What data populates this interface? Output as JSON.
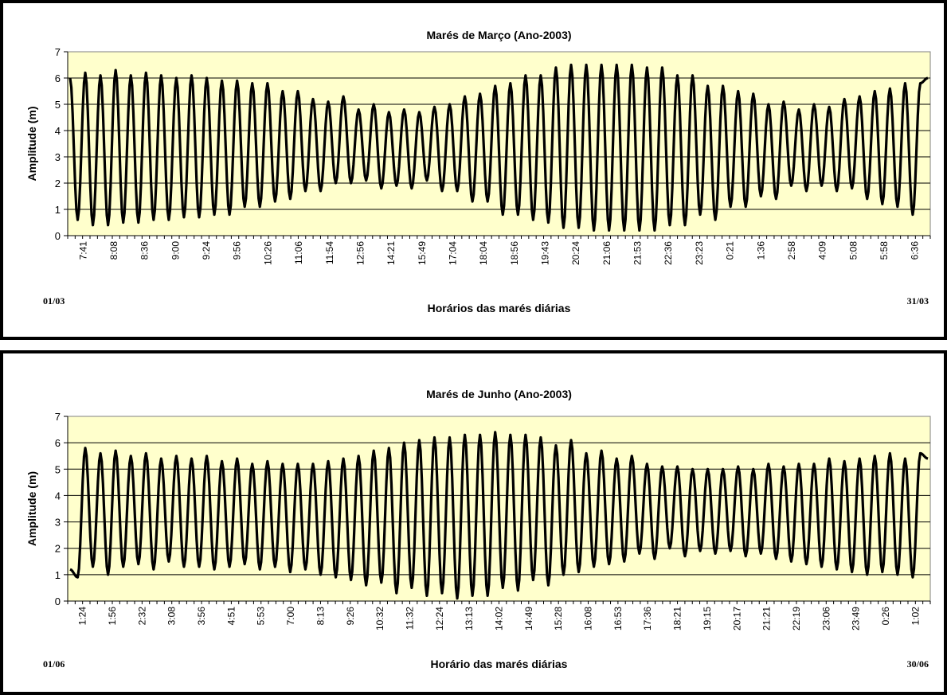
{
  "chart_data": [
    {
      "type": "line",
      "title": "Marés de Março (Ano-2003)",
      "xlabel": "Horários das marés diárias",
      "ylabel": "Amplitude (m)",
      "start_date_label": "01/03",
      "end_date_label": "31/03",
      "ylim": [
        0,
        7
      ],
      "yticks": [
        0,
        1,
        2,
        3,
        4,
        5,
        6,
        7
      ],
      "grid": true,
      "legend": "none",
      "plot_background": "#FFFFCC",
      "line_color": "#000000",
      "x_tick_labels": [
        "7:41",
        "8:08",
        "8:36",
        "9:00",
        "9:24",
        "9:56",
        "10:26",
        "11:06",
        "11:54",
        "12:56",
        "14:21",
        "15:49",
        "17:04",
        "18:04",
        "18:56",
        "19:43",
        "20:24",
        "21:06",
        "21:53",
        "22:36",
        "23:23",
        "0:21",
        "1:36",
        "2:58",
        "4:09",
        "5:08",
        "5:58",
        "6:36"
      ],
      "series": [
        {
          "high_waters": [
            6.2,
            6.1,
            6.3,
            6.1,
            6.2,
            6.1,
            6.0,
            6.1,
            6.0,
            5.9,
            5.9,
            5.8,
            5.8,
            5.5,
            5.5,
            5.2,
            5.1,
            5.3,
            4.8,
            5.0,
            4.7,
            4.8,
            4.7,
            4.9,
            5.0,
            5.3,
            5.4,
            5.7,
            5.8,
            6.1,
            6.1,
            6.4,
            6.5,
            6.5,
            6.5,
            6.5,
            6.5,
            6.4,
            6.4,
            6.1,
            6.1,
            5.7,
            5.7,
            5.5,
            5.4,
            5.0,
            5.1,
            4.8,
            5.0,
            4.9,
            5.2,
            5.3,
            5.5,
            5.6,
            5.8,
            5.8
          ],
          "low_waters": [
            0.6,
            0.4,
            0.4,
            0.5,
            0.5,
            0.6,
            0.6,
            0.7,
            0.7,
            0.8,
            0.8,
            1.1,
            1.1,
            1.3,
            1.4,
            1.7,
            1.7,
            2.0,
            2.0,
            2.1,
            1.8,
            1.9,
            1.8,
            2.1,
            1.7,
            1.7,
            1.3,
            1.3,
            0.8,
            0.8,
            0.6,
            0.5,
            0.3,
            0.3,
            0.2,
            0.2,
            0.2,
            0.2,
            0.2,
            0.4,
            0.4,
            0.8,
            0.6,
            1.1,
            1.1,
            1.5,
            1.4,
            1.9,
            1.7,
            1.9,
            1.7,
            1.8,
            1.4,
            1.2,
            1.1,
            0.8
          ],
          "start_value": 6.0,
          "end_value": 6.0
        }
      ]
    },
    {
      "type": "line",
      "title": "Marés de Junho (Ano-2003)",
      "xlabel": "Horário das marés diárias",
      "ylabel": "Amplitude (m)",
      "start_date_label": "01/06",
      "end_date_label": "30/06",
      "ylim": [
        0,
        7
      ],
      "yticks": [
        0,
        1,
        2,
        3,
        4,
        5,
        6,
        7
      ],
      "grid": true,
      "legend": "none",
      "plot_background": "#FFFFCC",
      "line_color": "#000000",
      "x_tick_labels": [
        "1:24",
        "1:56",
        "2:32",
        "3:08",
        "3:56",
        "4:51",
        "5:53",
        "7:00",
        "8:13",
        "9:26",
        "10:32",
        "11:32",
        "12:24",
        "13:13",
        "14:02",
        "14:49",
        "15:28",
        "16:08",
        "16:53",
        "17:36",
        "18:21",
        "19:15",
        "20:17",
        "21:21",
        "22:19",
        "23:06",
        "23:49",
        "0:26",
        "1:02"
      ],
      "series": [
        {
          "high_waters": [
            5.8,
            5.6,
            5.7,
            5.5,
            5.6,
            5.4,
            5.5,
            5.4,
            5.5,
            5.3,
            5.4,
            5.2,
            5.3,
            5.2,
            5.2,
            5.2,
            5.3,
            5.4,
            5.5,
            5.7,
            5.8,
            6.0,
            6.1,
            6.2,
            6.2,
            6.3,
            6.3,
            6.4,
            6.3,
            6.3,
            6.2,
            5.9,
            6.1,
            5.6,
            5.7,
            5.4,
            5.5,
            5.2,
            5.1,
            5.1,
            5.0,
            5.0,
            5.0,
            5.1,
            5.0,
            5.2,
            5.1,
            5.2,
            5.2,
            5.4,
            5.3,
            5.4,
            5.5,
            5.6,
            5.4,
            5.6
          ],
          "low_waters": [
            0.9,
            1.3,
            1.0,
            1.3,
            1.4,
            1.2,
            1.5,
            1.3,
            1.3,
            1.2,
            1.3,
            1.4,
            1.2,
            1.3,
            1.1,
            1.2,
            1.0,
            0.9,
            0.8,
            0.6,
            0.7,
            0.3,
            0.5,
            0.2,
            0.3,
            0.1,
            0.2,
            0.2,
            0.5,
            0.4,
            0.8,
            0.6,
            1.0,
            1.1,
            1.3,
            1.4,
            1.5,
            1.8,
            1.6,
            2.0,
            1.7,
            1.9,
            1.8,
            1.9,
            1.7,
            1.8,
            1.6,
            1.5,
            1.4,
            1.3,
            1.2,
            1.1,
            1.0,
            1.1,
            1.0,
            0.9
          ],
          "start_value": 1.2,
          "end_value": 5.4
        }
      ]
    }
  ]
}
